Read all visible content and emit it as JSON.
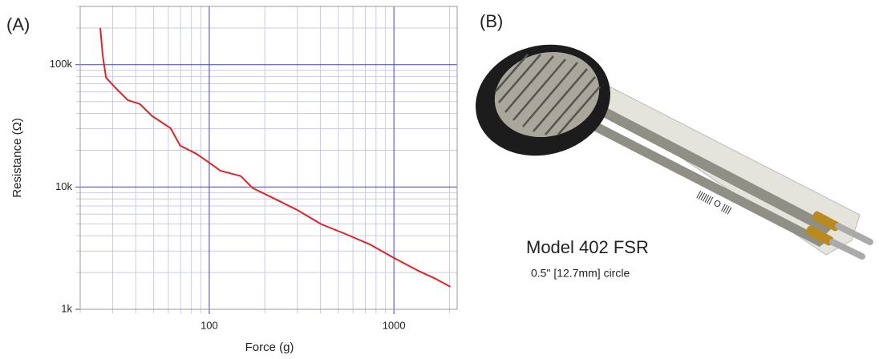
{
  "panels": {
    "a_label": "(A)",
    "b_label": "(B)"
  },
  "chart_data": {
    "type": "line",
    "xlabel": "Force (g)",
    "ylabel": "Resistance (Ω)",
    "x": [
      25.7,
      26.5,
      27.6,
      31.1,
      36.2,
      42.1,
      49,
      61.7,
      69.6,
      85.2,
      100,
      115,
      148,
      172,
      221,
      299,
      405,
      547,
      740,
      1000,
      1352,
      1653,
      2023
    ],
    "values": [
      200000,
      118000,
      78500,
      64600,
      51400,
      47700,
      38100,
      30300,
      21800,
      18700,
      15800,
      13600,
      12300,
      9800,
      8150,
      6500,
      4960,
      4130,
      3400,
      2630,
      2070,
      1800,
      1530
    ],
    "color": "#e32222",
    "xscale": "log",
    "yscale": "log",
    "xlim": [
      20,
      2200
    ],
    "ylim": [
      1000,
      300000
    ],
    "xticks": [
      100,
      1000
    ],
    "yticks": [
      {
        "value": 1000,
        "label": "1k"
      },
      {
        "value": 10000,
        "label": "10k"
      },
      {
        "value": 100000,
        "label": "100k"
      }
    ],
    "x_minor_grid": [
      20,
      30,
      40,
      50,
      60,
      70,
      80,
      90,
      200,
      300,
      400,
      500,
      600,
      700,
      800,
      900,
      2000
    ],
    "y_minor_grid": [
      2000,
      3000,
      4000,
      5000,
      6000,
      7000,
      8000,
      9000,
      20000,
      30000,
      40000,
      50000,
      60000,
      70000,
      80000,
      90000,
      200000,
      300000
    ],
    "grid": true,
    "major_grid_color": "#4040c8",
    "minor_grid_color": "#c9c9ee"
  },
  "photo": {
    "title": "Model 402 FSR",
    "subtitle": "0.5\" [12.7mm] circle"
  }
}
